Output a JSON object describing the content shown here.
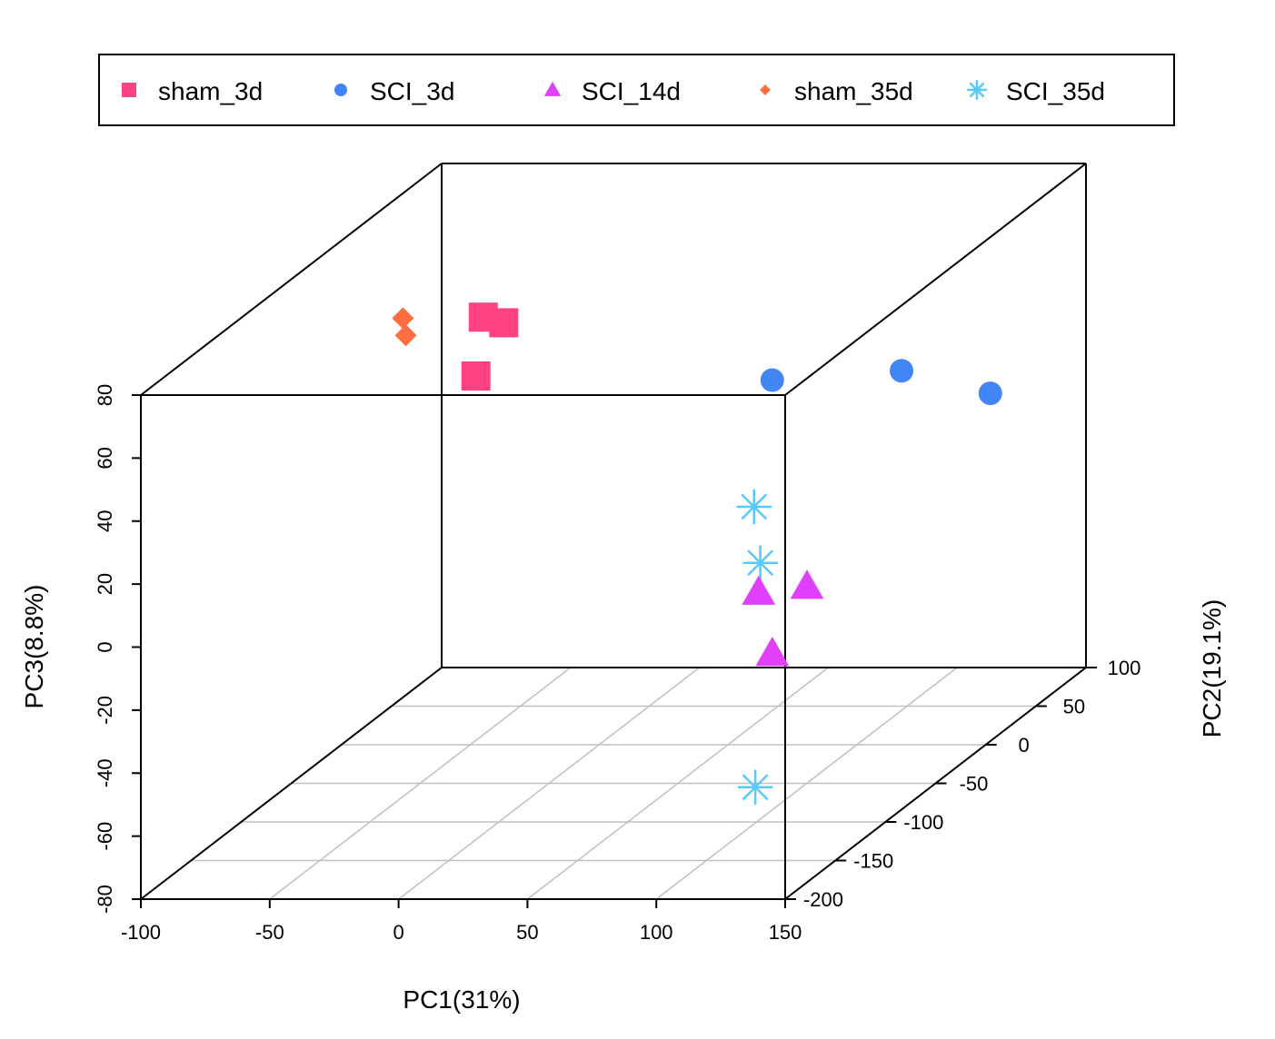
{
  "chart_data": {
    "type": "scatter",
    "projection": "3d",
    "xlabel": "PC1(31%)",
    "ylabel": "PC2(19.1%)",
    "zlabel": "PC3(8.8%)",
    "xlim": [
      -100,
      150
    ],
    "ylim": [
      -200,
      100
    ],
    "zlim": [
      -80,
      80
    ],
    "x_ticks": [
      "-100",
      "-50",
      "0",
      "50",
      "100",
      "150"
    ],
    "y_ticks": [
      "-200",
      "-150",
      "-100",
      "-50",
      "0",
      "50",
      "100"
    ],
    "z_ticks": [
      "-80",
      "-60",
      "-40",
      "-20",
      "0",
      "20",
      "40",
      "60",
      "80"
    ],
    "grid": true,
    "box": true,
    "legend_position": "top",
    "series": [
      {
        "name": "sham_3d",
        "marker": "square",
        "color": "#FF4281",
        "points": [
          {
            "x": -8,
            "y": -95,
            "z": 79
          },
          {
            "x": -2,
            "y": -90,
            "z": 76
          },
          {
            "x": -5,
            "y": -110,
            "z": 64
          }
        ]
      },
      {
        "name": "SCI_3d",
        "marker": "circle",
        "color": "#4285F4",
        "points": [
          {
            "x": 94,
            "y": 60,
            "z": 24
          },
          {
            "x": 116,
            "y": 92,
            "z": 9
          },
          {
            "x": 66,
            "y": 3,
            "z": 35
          }
        ]
      },
      {
        "name": "SCI_14d",
        "marker": "triangle",
        "color": "#E040FB",
        "points": [
          {
            "x": 93,
            "y": -80,
            "z": -12
          },
          {
            "x": 104,
            "y": -60,
            "z": -15
          },
          {
            "x": 145,
            "y": -200,
            "z": -2
          }
        ]
      },
      {
        "name": "sham_35d",
        "marker": "diamond",
        "color": "#FF6E40",
        "points": [
          {
            "x": -45,
            "y": -80,
            "z": 75
          },
          {
            "x": -40,
            "y": -90,
            "z": 72
          }
        ]
      },
      {
        "name": "SCI_35d",
        "marker": "star",
        "color": "#5AC8FA",
        "points": [
          {
            "x": 64,
            "y": -10,
            "z": -2
          },
          {
            "x": 82,
            "y": -50,
            "z": -10
          },
          {
            "x": 82,
            "y": -55,
            "z": -80
          }
        ]
      }
    ]
  }
}
